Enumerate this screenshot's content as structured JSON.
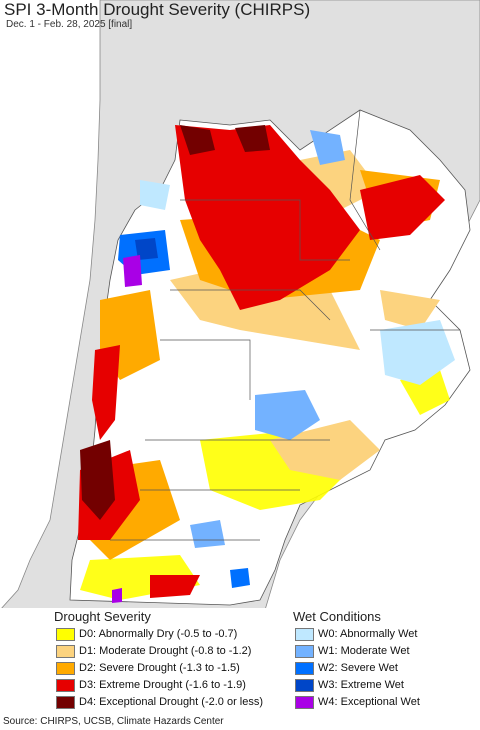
{
  "title": "SPI 3-Month Drought Severity (CHIRPS)",
  "subtitle": "Dec. 1 - Feb. 28, 2025 [final]",
  "legend": {
    "drought_heading": "Drought Severity",
    "wet_heading": "Wet Conditions",
    "drought": [
      {
        "label": "D0: Abnormally Dry (-0.5 to -0.7)",
        "color": "#ffff00"
      },
      {
        "label": "D1: Moderate Drought (-0.8 to -1.2)",
        "color": "#fcd37f"
      },
      {
        "label": "D2: Severe Drought (-1.3 to -1.5)",
        "color": "#ffaa00"
      },
      {
        "label": "D3: Extreme Drought (-1.6 to -1.9)",
        "color": "#e60000"
      },
      {
        "label": "D4: Exceptional Drought (-2.0 or less)",
        "color": "#730000"
      }
    ],
    "wet": [
      {
        "label": "W0: Abnormally Wet",
        "color": "#bfe8ff"
      },
      {
        "label": "W1: Moderate Wet",
        "color": "#73b2ff"
      },
      {
        "label": "W2: Severe Wet",
        "color": "#0070ff"
      },
      {
        "label": "W3: Extreme Wet",
        "color": "#0046c8"
      },
      {
        "label": "W4: Exceptional Wet",
        "color": "#a900e6"
      }
    ]
  },
  "colors": {
    "ocean": "#ffffff",
    "land_outside": "#e0e0e0",
    "land_inside": "#ffffff",
    "borders": "#555555"
  },
  "source": "Source: CHIRPS, UCSB, Climate Hazards Center"
}
